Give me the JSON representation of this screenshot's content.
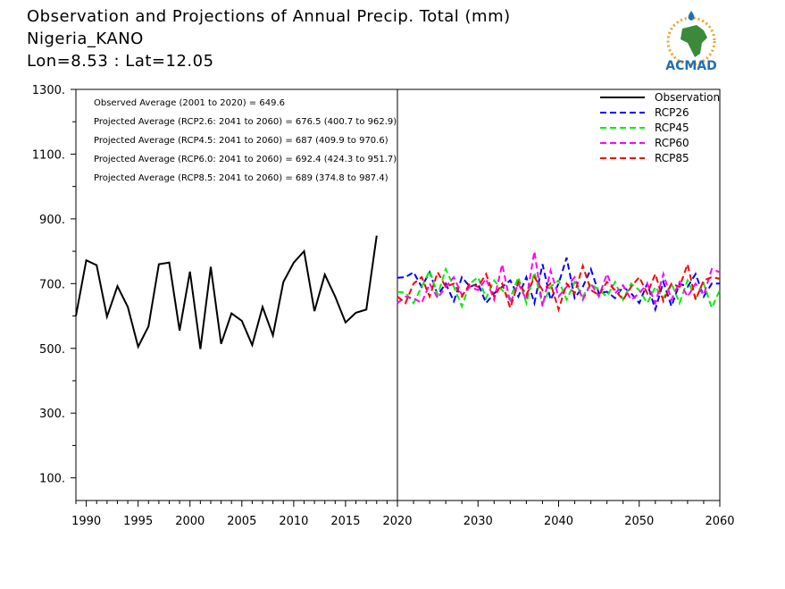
{
  "header": {
    "title": "Observation and Projections of Annual Precip. Total (mm)",
    "location": "Nigeria_KANO",
    "coords": "Lon=8.53 : Lat=12.05"
  },
  "logo": {
    "text": "ACMAD",
    "icon": "africa-map-icon",
    "colors": {
      "blue": "#1f6fb5",
      "green": "#3a8a3a",
      "gold": "#f0a020"
    }
  },
  "stats": [
    "Observed Average (2001 to 2020) = 649.6",
    "Projected Average (RCP2.6: 2041 to 2060) = 676.5 (400.7 to 962.9)",
    "Projected Average (RCP4.5: 2041 to 2060) = 687 (409.9 to 970.6)",
    "Projected Average (RCP6.0: 2041 to 2060) = 692.4 (424.3 to 951.7)",
    "Projected Average (RCP8.5: 2041 to 2060) = 689 (374.8 to 987.4)"
  ],
  "chart_data": {
    "type": "line",
    "xlim": [
      1989,
      2060
    ],
    "ylim": [
      30,
      1300
    ],
    "yticks": [
      {
        "value": 100,
        "label": "100."
      },
      {
        "value": 300,
        "label": "300."
      },
      {
        "value": 500,
        "label": "500."
      },
      {
        "value": 700,
        "label": "700."
      },
      {
        "value": 900,
        "label": "900."
      },
      {
        "value": 1100,
        "label": "1100."
      },
      {
        "value": 1300,
        "label": "1300."
      }
    ],
    "xticks_left": [
      1990,
      1995,
      2000,
      2005,
      2010,
      2015,
      2020
    ],
    "xticks_right": [
      2030,
      2040,
      2050,
      2060
    ],
    "legend_position": "top-right",
    "grid": false,
    "series": [
      {
        "name": "Observation",
        "color": "#000000",
        "dashed": false,
        "x": [
          1989,
          1990,
          1991,
          1992,
          1993,
          1994,
          1995,
          1996,
          1997,
          1998,
          1999,
          2000,
          2001,
          2002,
          2003,
          2004,
          2005,
          2006,
          2007,
          2008,
          2009,
          2010,
          2011,
          2012,
          2013,
          2014,
          2015,
          2016,
          2017,
          2018,
          2019,
          2020
        ],
        "y": [
          600,
          772,
          757,
          598,
          692,
          628,
          505,
          568,
          760,
          765,
          555,
          737,
          498,
          752,
          514,
          608,
          585,
          510,
          628,
          540,
          705,
          765,
          800,
          615,
          728,
          660,
          580,
          610,
          620,
          848,
          null,
          null
        ]
      },
      {
        "name": "RCP26",
        "color": "#0000ff",
        "dashed": true,
        "x": [
          2020,
          2021,
          2022,
          2023,
          2024,
          2025,
          2026,
          2027,
          2028,
          2029,
          2030,
          2031,
          2032,
          2033,
          2034,
          2035,
          2036,
          2037,
          2038,
          2039,
          2040,
          2041,
          2042,
          2043,
          2044,
          2045,
          2046,
          2047,
          2048,
          2049,
          2050,
          2051,
          2052,
          2053,
          2054,
          2055,
          2056,
          2057,
          2058,
          2059,
          2060
        ],
        "y": [
          718,
          720,
          735,
          690,
          735,
          665,
          700,
          645,
          720,
          690,
          700,
          640,
          670,
          690,
          710,
          660,
          720,
          640,
          760,
          650,
          700,
          780,
          655,
          690,
          745,
          670,
          675,
          655,
          690,
          670,
          640,
          700,
          620,
          705,
          630,
          700,
          690,
          730,
          660,
          700,
          700
        ]
      },
      {
        "name": "RCP45",
        "color": "#00ee00",
        "dashed": true,
        "x": [
          2020,
          2021,
          2022,
          2023,
          2024,
          2025,
          2026,
          2027,
          2028,
          2029,
          2030,
          2031,
          2032,
          2033,
          2034,
          2035,
          2036,
          2037,
          2038,
          2039,
          2040,
          2041,
          2042,
          2043,
          2044,
          2045,
          2046,
          2047,
          2048,
          2049,
          2050,
          2051,
          2052,
          2053,
          2054,
          2055,
          2056,
          2057,
          2058,
          2059,
          2060
        ],
        "y": [
          675,
          672,
          640,
          690,
          740,
          665,
          745,
          690,
          630,
          700,
          720,
          655,
          710,
          680,
          655,
          720,
          640,
          735,
          635,
          690,
          710,
          650,
          705,
          660,
          700,
          680,
          660,
          705,
          650,
          700,
          680,
          640,
          690,
          655,
          700,
          640,
          710,
          655,
          700,
          625,
          680
        ]
      },
      {
        "name": "RCP60",
        "color": "#ff00ff",
        "dashed": true,
        "x": [
          2020,
          2021,
          2022,
          2023,
          2024,
          2025,
          2026,
          2027,
          2028,
          2029,
          2030,
          2031,
          2032,
          2033,
          2034,
          2035,
          2036,
          2037,
          2038,
          2039,
          2040,
          2041,
          2042,
          2043,
          2044,
          2045,
          2046,
          2047,
          2048,
          2049,
          2050,
          2051,
          2052,
          2053,
          2054,
          2055,
          2056,
          2057,
          2058,
          2059,
          2060
        ],
        "y": [
          640,
          660,
          655,
          640,
          700,
          655,
          690,
          720,
          665,
          690,
          680,
          715,
          650,
          760,
          640,
          700,
          650,
          800,
          630,
          740,
          660,
          690,
          720,
          650,
          700,
          660,
          730,
          670,
          695,
          650,
          670,
          700,
          640,
          730,
          650,
          705,
          660,
          700,
          665,
          745,
          735
        ]
      },
      {
        "name": "RCP85",
        "color": "#ff0000",
        "dashed": true,
        "x": [
          2020,
          2021,
          2022,
          2023,
          2024,
          2025,
          2026,
          2027,
          2028,
          2029,
          2030,
          2031,
          2032,
          2033,
          2034,
          2035,
          2036,
          2037,
          2038,
          2039,
          2040,
          2041,
          2042,
          2043,
          2044,
          2045,
          2046,
          2047,
          2048,
          2049,
          2050,
          2051,
          2052,
          2053,
          2054,
          2055,
          2056,
          2057,
          2058,
          2059,
          2060
        ],
        "y": [
          660,
          640,
          700,
          720,
          660,
          735,
          690,
          700,
          660,
          700,
          690,
          730,
          660,
          700,
          625,
          705,
          665,
          720,
          680,
          700,
          620,
          700,
          670,
          755,
          680,
          665,
          705,
          680,
          650,
          690,
          720,
          670,
          730,
          645,
          700,
          690,
          760,
          650,
          710,
          720,
          715
        ]
      }
    ]
  }
}
